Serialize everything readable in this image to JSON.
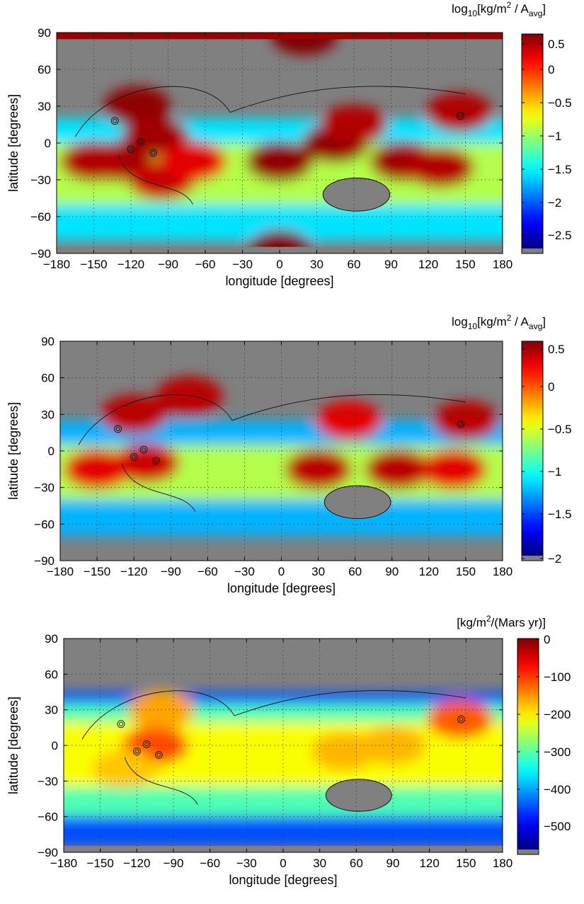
{
  "chart_data": [
    {
      "type": "heatmap",
      "panel": "top",
      "xlabel": "longitude [degrees]",
      "ylabel": "latitude [degrees]",
      "xlim": [
        -180,
        180
      ],
      "ylim": [
        -90,
        90
      ],
      "xticks": [
        "−180",
        "−150",
        "−120",
        "−90",
        "−60",
        "−30",
        "0",
        "30",
        "60",
        "90",
        "120",
        "150",
        "180"
      ],
      "yticks": [
        "90",
        "60",
        "30",
        "0",
        "−30",
        "−60",
        "−90"
      ],
      "grid": true,
      "colorbar": {
        "title": "log10[kg/m2 / Aavg]",
        "title_parts": {
          "base": "log",
          "sub1": "10",
          "mid": "[kg/m",
          "sup": "2",
          "mid2": " / A",
          "sub2": "avg",
          "end": "]"
        },
        "clim": [
          -2.5,
          0.5
        ],
        "ticks": [
          "0.5",
          "0",
          "−0.5",
          "−1",
          "−1.5",
          "−2",
          "−2.5"
        ]
      },
      "high_regions": [
        {
          "lon": -115,
          "lat": 30,
          "level": 0.45
        },
        {
          "lon": -100,
          "lat": 5,
          "level": 0.4
        },
        {
          "lon": -130,
          "lat": -15,
          "level": 0.4
        },
        {
          "lon": -95,
          "lat": -30,
          "level": 0.3
        },
        {
          "lon": -150,
          "lat": -15,
          "level": 0.35
        },
        {
          "lon": -70,
          "lat": -15,
          "level": 0.2
        },
        {
          "lon": 0,
          "lat": -15,
          "level": 0.45
        },
        {
          "lon": 45,
          "lat": 0,
          "level": 0.45
        },
        {
          "lon": 60,
          "lat": 15,
          "level": 0.35
        },
        {
          "lon": 100,
          "lat": -15,
          "level": 0.4
        },
        {
          "lon": 130,
          "lat": -20,
          "level": 0.35
        },
        {
          "lon": 145,
          "lat": 25,
          "level": 0.35
        },
        {
          "lon": 20,
          "lat": 88,
          "level": 0.5
        },
        {
          "lon": 0,
          "lat": -87,
          "level": 0.5
        }
      ]
    },
    {
      "type": "heatmap",
      "panel": "middle",
      "xlabel": "longitude [degrees]",
      "ylabel": "latitude [degrees]",
      "xlim": [
        -180,
        180
      ],
      "ylim": [
        -90,
        90
      ],
      "xticks": [
        "−180",
        "−150",
        "−120",
        "−90",
        "−60",
        "−30",
        "0",
        "30",
        "60",
        "90",
        "120",
        "150",
        "180"
      ],
      "yticks": [
        "90",
        "60",
        "30",
        "0",
        "−30",
        "−60",
        "−90"
      ],
      "grid": true,
      "colorbar": {
        "title": "log10[kg/m2 / Aavg]",
        "title_parts": {
          "base": "log",
          "sub1": "10",
          "mid": "[kg/m",
          "sup": "2",
          "mid2": " / A",
          "sub2": "avg",
          "end": "]"
        },
        "clim": [
          -2.0,
          0.6
        ],
        "ticks": [
          "0.5",
          "0",
          "−0.5",
          "−1",
          "−1.5",
          "−2"
        ]
      },
      "high_regions": [
        {
          "lon": -120,
          "lat": 30,
          "level": 0.45
        },
        {
          "lon": -75,
          "lat": 45,
          "level": 0.45
        },
        {
          "lon": -110,
          "lat": -10,
          "level": 0.4
        },
        {
          "lon": -150,
          "lat": -15,
          "level": 0.35
        },
        {
          "lon": 30,
          "lat": -15,
          "level": 0.45
        },
        {
          "lon": 55,
          "lat": 25,
          "level": 0.35
        },
        {
          "lon": 95,
          "lat": -15,
          "level": 0.45
        },
        {
          "lon": 140,
          "lat": -15,
          "level": 0.35
        },
        {
          "lon": 150,
          "lat": 25,
          "level": 0.45
        }
      ]
    },
    {
      "type": "heatmap",
      "panel": "bottom",
      "xlabel": "longitude [degrees]",
      "ylabel": "latitude [degrees]",
      "xlim": [
        -180,
        180
      ],
      "ylim": [
        -90,
        90
      ],
      "xticks": [
        "−180",
        "−150",
        "−120",
        "−90",
        "−60",
        "−30",
        "0",
        "30",
        "60",
        "90",
        "120",
        "150",
        "180"
      ],
      "yticks": [
        "90",
        "60",
        "30",
        "0",
        "−30",
        "−60",
        "−90"
      ],
      "grid": true,
      "colorbar": {
        "title": "[kg/m2/(Mars yr)]",
        "title_parts": {
          "base": "",
          "sub1": "",
          "mid": "[kg/m",
          "sup": "2",
          "mid2": "/(Mars yr)",
          "sub2": "",
          "end": "]"
        },
        "clim": [
          -560,
          0
        ],
        "ticks": [
          "0",
          "−100",
          "−200",
          "−300",
          "−400",
          "−500"
        ]
      },
      "high_regions": [
        {
          "lon": -105,
          "lat": 0,
          "level": -110
        },
        {
          "lon": -100,
          "lat": 30,
          "level": -160
        },
        {
          "lon": -130,
          "lat": -20,
          "level": -180
        },
        {
          "lon": 50,
          "lat": -5,
          "level": -170
        },
        {
          "lon": 90,
          "lat": 0,
          "level": -170
        },
        {
          "lon": 145,
          "lat": 22,
          "level": -120
        }
      ]
    }
  ]
}
